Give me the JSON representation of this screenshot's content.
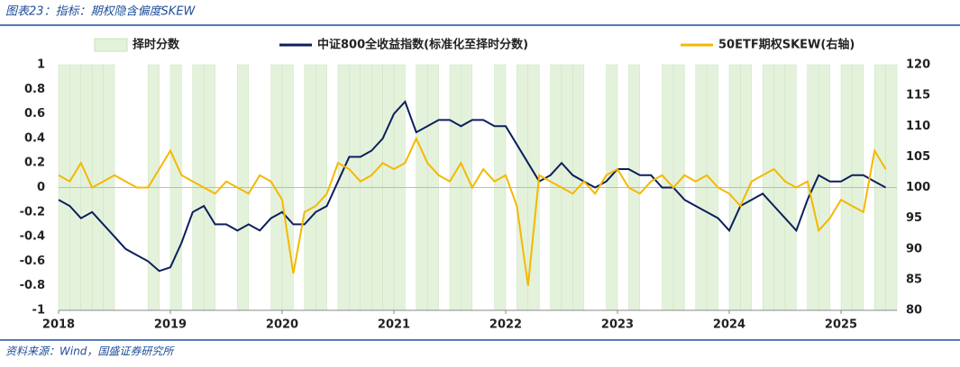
{
  "chart_data": {
    "type": "line",
    "title": "图表23：指标：期权隐含偏度SKEW",
    "source": "资料来源：Wind，国盛证券研究所",
    "x": [
      2018,
      2018.1,
      2018.2,
      2018.3,
      2018.4,
      2018.5,
      2018.6,
      2018.7,
      2018.8,
      2018.9,
      2019,
      2019.1,
      2019.2,
      2019.3,
      2019.4,
      2019.5,
      2019.6,
      2019.7,
      2019.8,
      2019.9,
      2020,
      2020.1,
      2020.2,
      2020.3,
      2020.4,
      2020.5,
      2020.6,
      2020.7,
      2020.8,
      2020.9,
      2021,
      2021.1,
      2021.2,
      2021.3,
      2021.4,
      2021.5,
      2021.6,
      2021.7,
      2021.8,
      2021.9,
      2022,
      2022.1,
      2022.2,
      2022.3,
      2022.4,
      2022.5,
      2022.6,
      2022.7,
      2022.8,
      2022.9,
      2023,
      2023.1,
      2023.2,
      2023.3,
      2023.4,
      2023.5,
      2023.6,
      2023.7,
      2023.8,
      2023.9,
      2024,
      2024.1,
      2024.2,
      2024.3,
      2024.4,
      2024.5,
      2024.6,
      2024.7,
      2024.8,
      2024.9,
      2025,
      2025.1,
      2025.2,
      2025.3,
      2025.4
    ],
    "xlim": [
      2018,
      2025.5
    ],
    "xticks": [
      2018,
      2019,
      2020,
      2021,
      2022,
      2023,
      2024,
      2025
    ],
    "ylim": [
      -1,
      1
    ],
    "yticks": [
      -1,
      -0.8,
      -0.6,
      -0.4,
      -0.2,
      0,
      0.2,
      0.4,
      0.6,
      0.8,
      1
    ],
    "y2lim": [
      80,
      120
    ],
    "y2ticks": [
      80,
      85,
      90,
      95,
      100,
      105,
      110,
      115,
      120
    ],
    "series": [
      {
        "name": "择时分数",
        "color": "#e4f2dc",
        "style": "area",
        "values": [
          1,
          1,
          1,
          1,
          1,
          -1,
          -1,
          -1,
          1,
          -1,
          1,
          -1,
          1,
          1,
          -1,
          -1,
          1,
          -1,
          -1,
          1,
          1,
          -1,
          1,
          1,
          -1,
          1,
          1,
          1,
          1,
          1,
          1,
          -1,
          1,
          1,
          -1,
          1,
          1,
          -1,
          -1,
          1,
          -1,
          1,
          1,
          -1,
          1,
          1,
          1,
          -1,
          -1,
          1,
          -1,
          1,
          -1,
          -1,
          1,
          1,
          -1,
          1,
          1,
          -1,
          1,
          1,
          -1,
          1,
          1,
          1,
          -1,
          1,
          1,
          -1,
          1,
          1,
          -1,
          1,
          1
        ]
      },
      {
        "name": "中证800全收益指数(标准化至择时分数)",
        "color": "#0d1f5c",
        "style": "line",
        "values": [
          -0.1,
          -0.15,
          -0.25,
          -0.2,
          -0.3,
          -0.4,
          -0.5,
          -0.55,
          -0.6,
          -0.68,
          -0.65,
          -0.45,
          -0.2,
          -0.15,
          -0.3,
          -0.3,
          -0.35,
          -0.3,
          -0.35,
          -0.25,
          -0.2,
          -0.3,
          -0.3,
          -0.2,
          -0.15,
          0.05,
          0.25,
          0.25,
          0.3,
          0.4,
          0.6,
          0.7,
          0.45,
          0.5,
          0.55,
          0.55,
          0.5,
          0.55,
          0.55,
          0.5,
          0.5,
          0.35,
          0.2,
          0.05,
          0.1,
          0.2,
          0.1,
          0.05,
          0,
          0.05,
          0.15,
          0.15,
          0.1,
          0.1,
          0,
          0,
          -0.1,
          -0.15,
          -0.2,
          -0.25,
          -0.35,
          -0.15,
          -0.1,
          -0.05,
          -0.15,
          -0.25,
          -0.35,
          -0.1,
          0.1,
          0.05,
          0.05,
          0.1,
          0.1,
          0.05,
          0
        ]
      },
      {
        "name": "50ETF期权SKEW(右轴)",
        "color": "#f5b800",
        "style": "line",
        "axis": "y2",
        "values": [
          102,
          101,
          104,
          100,
          101,
          102,
          101,
          100,
          100,
          103,
          106,
          102,
          101,
          100,
          99,
          101,
          100,
          99,
          102,
          101,
          98,
          86,
          96,
          97,
          99,
          104,
          103,
          101,
          102,
          104,
          103,
          104,
          108,
          104,
          102,
          101,
          104,
          100,
          103,
          101,
          102,
          97,
          84,
          102,
          101,
          100,
          99,
          101,
          99,
          102,
          103,
          100,
          99,
          101,
          102,
          100,
          102,
          101,
          102,
          100,
          99,
          97,
          101,
          102,
          103,
          101,
          100,
          101,
          93,
          95,
          98,
          97,
          96,
          106,
          103
        ]
      }
    ]
  }
}
